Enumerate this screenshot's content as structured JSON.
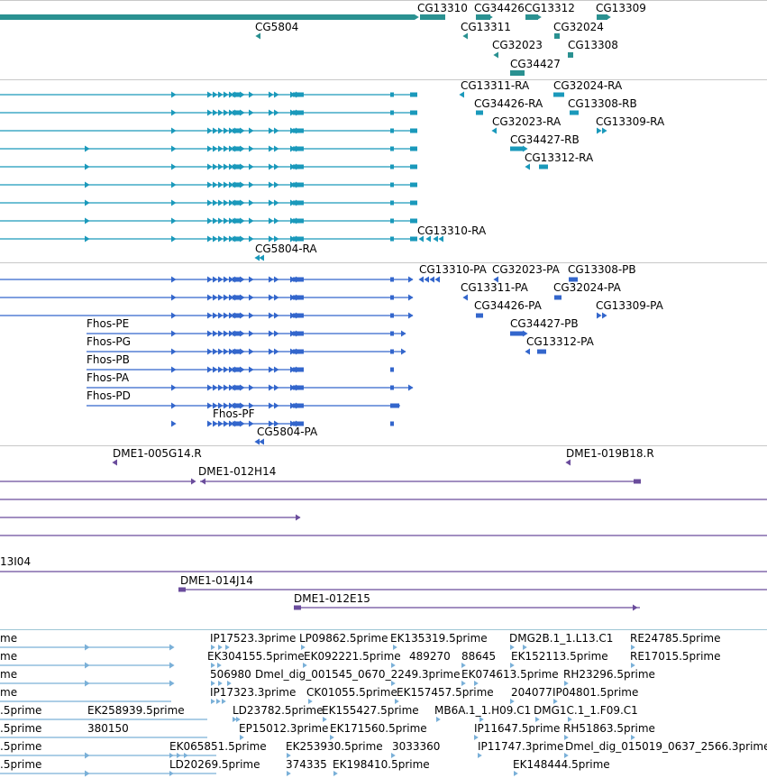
{
  "colors": {
    "gene": "#2a9191",
    "transcript": "#1a99bb",
    "cds": "#3366cc",
    "clone": "#6a4c9c",
    "est": "#7ab0d8",
    "separator": "#c8c8c8"
  },
  "tracks": [
    {
      "id": "genes",
      "color_key": "gene",
      "name": "genes-track"
    },
    {
      "id": "transcripts",
      "color_key": "transcript",
      "name": "transcripts-track"
    },
    {
      "id": "cds",
      "color_key": "cds",
      "name": "cds-track"
    },
    {
      "id": "clones",
      "color_key": "clone",
      "name": "clones-track"
    },
    {
      "id": "ests",
      "color_key": "est",
      "name": "ests-track"
    }
  ],
  "labels": {
    "genes": [
      "CG13310",
      "CG34426",
      "CG13312",
      "CG13309",
      "CG5804",
      "CG13311",
      "CG32024",
      "CG32023",
      "CG13308",
      "CG34427"
    ],
    "transcripts": [
      "CG13311-RA",
      "CG32024-RA",
      "CG34426-RA",
      "CG13308-RB",
      "CG32023-RA",
      "CG13309-RA",
      "CG34427-RB",
      "CG13312-RA",
      "CG13310-RA",
      "CG5804-RA"
    ],
    "cds": [
      "CG13310-PA",
      "CG32023-PA",
      "CG13308-PB",
      "CG13311-PA",
      "CG32024-PA",
      "CG34426-PA",
      "CG13309-PA",
      "Fhos-PE",
      "CG34427-PB",
      "Fhos-PG",
      "CG13312-PA",
      "Fhos-PB",
      "Fhos-PA",
      "Fhos-PD",
      "Fhos-PF",
      "CG5804-PA"
    ],
    "clones": [
      "DME1-005G14.R",
      "DME1-019B18.R",
      "DME1-012H14",
      "13I04",
      "DME1-014J14",
      "DME1-012E15"
    ],
    "ests": [
      "IP17523.3prime",
      "LP09862.5prime",
      "EK135319.5prime",
      "DMG2B.1_1.L13.C1",
      "RE24785.5prime",
      "EK304155.5prime",
      "EK092221.5prime",
      "489270",
      "88645",
      "EK152113.5prime",
      "RE17015.5prime",
      "506980",
      "Dmel_dig_001545_0670_2249.3prime",
      "EK074613.5prime",
      "RH23296.5prime",
      "IP17323.3prime",
      "CK01055.5prime",
      "EK157457.5prime",
      "204077",
      "IP04801.5prime",
      "EK258939.5prime",
      "LD23782.5prime",
      "EK155427.5prime",
      "MB6A.1_1.H09.C1",
      "DMG1C.1_1.F09.C1",
      "380150",
      "EP15012.3prime",
      "EK171560.5prime",
      "IP11647.5prime",
      "RH51863.5prime",
      "EK065851.5prime",
      "EK253930.5prime",
      "3033360",
      "IP11747.3prime",
      "Dmel_dig_015019_0637_2566.3prime",
      "LD20269.5prime",
      "374335",
      "EK198410.5prime",
      "EK148444.5prime"
    ],
    "est_cut_left": [
      ".5prime",
      ".5prime",
      ".5prime",
      ".5prime",
      "me",
      "me",
      "me",
      "me"
    ]
  }
}
